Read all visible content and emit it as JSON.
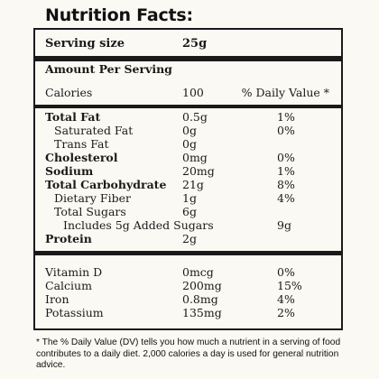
{
  "title": "Nutrition Facts:",
  "serving": {
    "label": "Serving size",
    "value": "25g"
  },
  "amount_per_serving": "Amount Per Serving",
  "calories": {
    "label": "Calories",
    "value": "100",
    "dv_header": "% Daily Value *"
  },
  "nutrients": [
    {
      "name": "Total Fat",
      "amount": "0.5g",
      "dv": "1%"
    },
    {
      "name": "Saturated Fat",
      "amount": "0g",
      "dv": "0%"
    },
    {
      "name": "Trans Fat",
      "amount": "0g",
      "dv": ""
    },
    {
      "name": "Cholesterol",
      "amount": "0mg",
      "dv": "0%"
    },
    {
      "name": "Sodium",
      "amount": "20mg",
      "dv": "1%"
    },
    {
      "name": "Total Carbohydrate",
      "amount": "21g",
      "dv": "8%"
    },
    {
      "name": "Dietary Fiber",
      "amount": "1g",
      "dv": "4%"
    },
    {
      "name": "Total Sugars",
      "amount": "6g",
      "dv": ""
    },
    {
      "name": "Includes 5g Added Sugars",
      "amount": "",
      "dv": "9g"
    },
    {
      "name": "Protein",
      "amount": "2g",
      "dv": ""
    }
  ],
  "vitamins": [
    {
      "name": "Vitamin D",
      "amount": "0mcg",
      "dv": "0%"
    },
    {
      "name": "Calcium",
      "amount": "200mg",
      "dv": "15%"
    },
    {
      "name": "Iron",
      "amount": "0.8mg",
      "dv": "4%"
    },
    {
      "name": "Potassium",
      "amount": "135mg",
      "dv": "2%"
    }
  ],
  "footnote": "* The % Daily Value (DV) tells you how much a nutrient in a serving of food contributes to a daily diet. 2,000 calories a day is used for general nutrition advice."
}
